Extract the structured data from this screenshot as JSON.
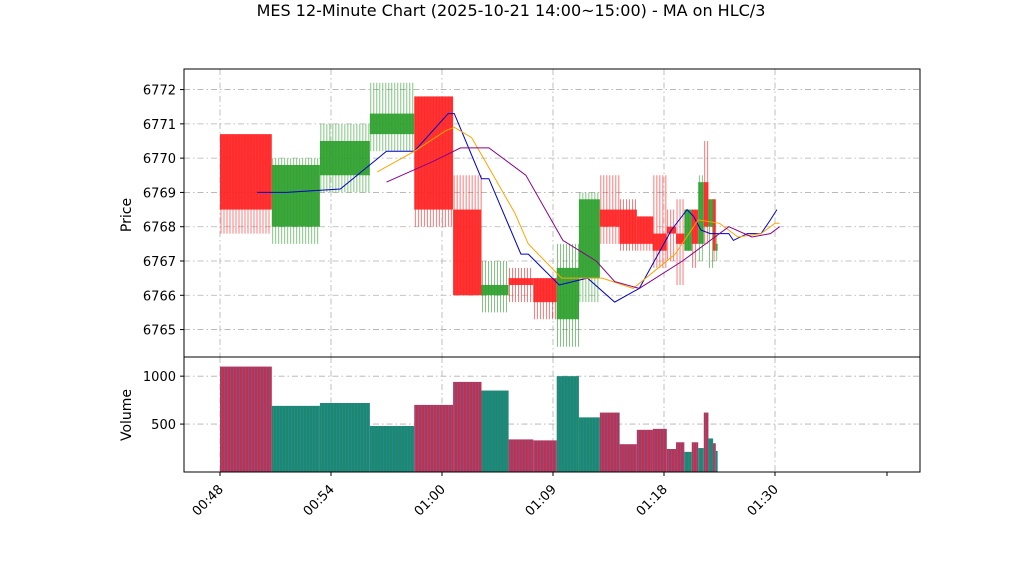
{
  "chart_data": {
    "type": "candlestick",
    "title": "MES 12-Minute Chart (2025-10-21 14:00~15:00) - MA on HLC/3",
    "price_axis": {
      "label": "Price",
      "range": [
        6764.2,
        6772.6
      ],
      "ticks": [
        6765,
        6766,
        6767,
        6768,
        6769,
        6770,
        6771,
        6772
      ]
    },
    "volume_axis": {
      "label": "Volume",
      "range": [
        0,
        1200
      ],
      "ticks": [
        500,
        1000
      ]
    },
    "time_axis": {
      "range": [
        47.0,
        81.0
      ],
      "ticks": [
        48,
        54,
        60,
        69,
        78,
        90
      ],
      "tick_labels": [
        "00:48",
        "00:54",
        "01:00",
        "01:09",
        "01:18",
        "01:30"
      ]
    },
    "grid": true,
    "colors": {
      "up": "#2ca02c",
      "down": "#ff2222",
      "ma_fast": "#0000cc",
      "ma_mid": "#ffa500",
      "ma_slow": "#8b008b",
      "volume_up": "#1a8a6a",
      "volume_down": "#c0304f"
    },
    "candles": [
      {
        "start": 48.0,
        "end": 50.8,
        "open": 6770.7,
        "high": 6770.7,
        "low": 6767.8,
        "close": 6768.5,
        "volume": 1100
      },
      {
        "start": 50.8,
        "end": 53.4,
        "open": 6768.0,
        "high": 6770.0,
        "low": 6767.5,
        "close": 6769.8,
        "volume": 690
      },
      {
        "start": 53.4,
        "end": 56.1,
        "open": 6769.5,
        "high": 6771.0,
        "low": 6769.0,
        "close": 6770.5,
        "volume": 720
      },
      {
        "start": 56.1,
        "end": 58.5,
        "open": 6770.7,
        "high": 6772.2,
        "low": 6770.2,
        "close": 6771.3,
        "volume": 480
      },
      {
        "start": 58.5,
        "end": 60.9,
        "open": 6771.8,
        "high": 6771.8,
        "low": 6768.0,
        "close": 6768.5,
        "volume": 700
      },
      {
        "start": 60.9,
        "end": 63.2,
        "open": 6768.5,
        "high": 6769.5,
        "low": 6766.0,
        "close": 6766.0,
        "volume": 940
      },
      {
        "start": 63.2,
        "end": 65.4,
        "open": 6766.0,
        "high": 6767.0,
        "low": 6765.5,
        "close": 6766.3,
        "volume": 850
      },
      {
        "start": 65.4,
        "end": 67.4,
        "open": 6766.5,
        "high": 6766.8,
        "low": 6765.8,
        "close": 6766.3,
        "volume": 340
      },
      {
        "start": 67.4,
        "end": 69.3,
        "open": 6766.5,
        "high": 6766.5,
        "low": 6765.3,
        "close": 6765.8,
        "volume": 330
      },
      {
        "start": 69.3,
        "end": 71.1,
        "open": 6765.3,
        "high": 6767.5,
        "low": 6764.5,
        "close": 6766.8,
        "volume": 1000
      },
      {
        "start": 71.1,
        "end": 72.8,
        "open": 6766.5,
        "high": 6769.0,
        "low": 6765.8,
        "close": 6768.8,
        "volume": 570
      },
      {
        "start": 72.8,
        "end": 74.4,
        "open": 6768.5,
        "high": 6769.5,
        "low": 6767.5,
        "close": 6768.0,
        "volume": 620
      },
      {
        "start": 74.4,
        "end": 75.8,
        "open": 6768.5,
        "high": 6768.8,
        "low": 6767.3,
        "close": 6767.5,
        "volume": 290
      },
      {
        "start": 75.8,
        "end": 77.1,
        "open": 6768.3,
        "high": 6768.3,
        "low": 6767.3,
        "close": 6767.5,
        "volume": 440
      },
      {
        "start": 77.1,
        "end": 78.3,
        "open": 6767.8,
        "high": 6769.5,
        "low": 6766.8,
        "close": 6767.3,
        "volume": 450
      },
      {
        "start": 78.3,
        "end": 79.3,
        "open": 6768.0,
        "high": 6768.5,
        "low": 6767.0,
        "close": 6767.8,
        "volume": 240
      },
      {
        "start": 79.3,
        "end": 80.2,
        "open": 6767.8,
        "high": 6768.8,
        "low": 6766.3,
        "close": 6767.5,
        "volume": 310
      },
      {
        "start": 80.2,
        "end": 81.0,
        "open": 6767.3,
        "high": 6768.5,
        "low": 6767.3,
        "close": 6768.5,
        "volume": 210
      },
      {
        "start": 81.0,
        "end": 81.7,
        "open": 6768.5,
        "high": 6768.5,
        "low": 6766.8,
        "close": 6767.5,
        "volume": 310
      },
      {
        "start": 81.7,
        "end": 82.3,
        "open": 6767.5,
        "high": 6769.5,
        "low": 6767.0,
        "close": 6769.3,
        "volume": 250
      },
      {
        "start": 82.3,
        "end": 82.8,
        "open": 6769.3,
        "high": 6770.5,
        "low": 6767.5,
        "close": 6768.0,
        "volume": 620
      },
      {
        "start": 82.8,
        "end": 83.3,
        "open": 6768.0,
        "high": 6768.8,
        "low": 6766.8,
        "close": 6768.8,
        "volume": 350
      },
      {
        "start": 83.3,
        "end": 83.6,
        "open": 6768.8,
        "high": 6768.8,
        "low": 6767.0,
        "close": 6767.3,
        "volume": 300
      },
      {
        "start": 83.6,
        "end": 83.8,
        "open": 6767.3,
        "high": 6767.8,
        "low": 6767.0,
        "close": 6767.5,
        "volume": 220
      }
    ],
    "ma_series": [
      {
        "color_key": "ma_fast",
        "points": [
          [
            50.0,
            6769.0
          ],
          [
            51.6,
            6769.0
          ],
          [
            54.5,
            6769.1
          ],
          [
            57.0,
            6770.2
          ],
          [
            58.5,
            6770.2
          ],
          [
            60.5,
            6771.3
          ],
          [
            61.0,
            6771.3
          ],
          [
            63.2,
            6769.4
          ],
          [
            63.8,
            6769.4
          ],
          [
            66.4,
            6767.2
          ],
          [
            67.0,
            6767.2
          ],
          [
            69.5,
            6766.3
          ],
          [
            71.8,
            6766.5
          ],
          [
            74.0,
            6765.8
          ],
          [
            76.0,
            6766.2
          ],
          [
            78.8,
            6767.9
          ],
          [
            80.5,
            6768.5
          ],
          [
            81.2,
            6768.3
          ],
          [
            82.0,
            6767.9
          ],
          [
            83.0,
            6767.8
          ],
          [
            85.0,
            6767.8
          ],
          [
            85.5,
            6767.6
          ],
          [
            87.0,
            6767.8
          ],
          [
            88.5,
            6767.8
          ],
          [
            89.5,
            6768.2
          ],
          [
            90.2,
            6768.5
          ]
        ]
      },
      {
        "color_key": "ma_mid",
        "points": [
          [
            56.5,
            6769.6
          ],
          [
            58.5,
            6770.2
          ],
          [
            60.3,
            6770.8
          ],
          [
            61.0,
            6770.9
          ],
          [
            62.4,
            6770.6
          ],
          [
            63.2,
            6770.1
          ],
          [
            65.9,
            6768.4
          ],
          [
            67.0,
            6767.5
          ],
          [
            69.7,
            6766.5
          ],
          [
            73.0,
            6766.5
          ],
          [
            75.5,
            6766.2
          ],
          [
            79.2,
            6767.2
          ],
          [
            81.7,
            6768.2
          ],
          [
            84.0,
            6768.1
          ],
          [
            86.0,
            6767.7
          ],
          [
            88.5,
            6767.8
          ],
          [
            90.0,
            6768.1
          ],
          [
            90.5,
            6768.1
          ]
        ]
      },
      {
        "color_key": "ma_slow",
        "points": [
          [
            57.0,
            6769.3
          ],
          [
            59.5,
            6769.9
          ],
          [
            61.5,
            6770.3
          ],
          [
            63.8,
            6770.3
          ],
          [
            66.8,
            6769.5
          ],
          [
            69.8,
            6767.6
          ],
          [
            72.5,
            6767.0
          ],
          [
            74.0,
            6766.4
          ],
          [
            76.0,
            6766.2
          ],
          [
            80.0,
            6767.0
          ],
          [
            82.5,
            6767.5
          ],
          [
            85.0,
            6768.0
          ],
          [
            87.5,
            6767.7
          ],
          [
            89.5,
            6767.8
          ],
          [
            90.5,
            6768.0
          ]
        ]
      }
    ]
  }
}
